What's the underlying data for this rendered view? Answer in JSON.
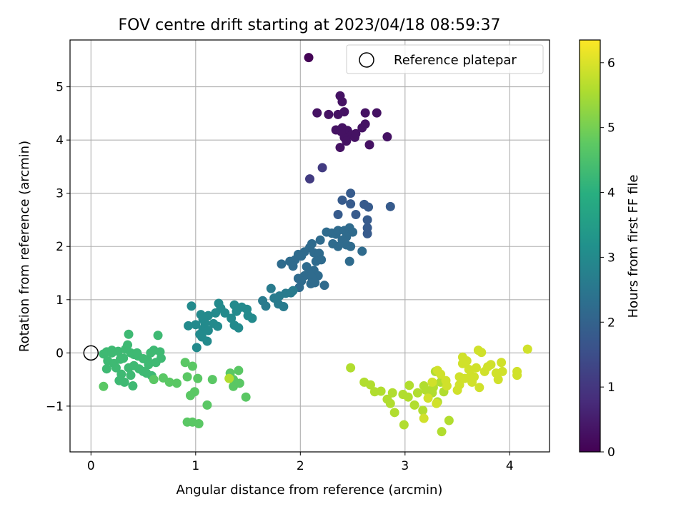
{
  "chart_data": {
    "type": "scatter",
    "title": "FOV centre drift starting at 2023/04/18 08:59:37",
    "xlabel": "Angular distance from reference (arcmin)",
    "ylabel": "Rotation from reference (arcmin)",
    "xlim": [
      -0.2,
      4.38
    ],
    "ylim": [
      -1.86,
      5.88
    ],
    "xticks": [
      0,
      1,
      2,
      3,
      4
    ],
    "xtick_labels": [
      "0",
      "1",
      "2",
      "3",
      "4"
    ],
    "yticks": [
      -1,
      0,
      1,
      2,
      3,
      4,
      5
    ],
    "ytick_labels": [
      "−1",
      "0",
      "1",
      "2",
      "3",
      "4",
      "5"
    ],
    "grid": true,
    "legend": {
      "label": "Reference platepar",
      "placement": "top-right"
    },
    "reference_point": {
      "x": 0,
      "y": 0
    },
    "colorbar": {
      "label": "Hours from first FF file",
      "range": [
        0,
        6.35
      ],
      "ticks": [
        0,
        1,
        2,
        3,
        4,
        5,
        6
      ],
      "tick_labels": [
        "0",
        "1",
        "2",
        "3",
        "4",
        "5",
        "6"
      ],
      "colormap": "viridis"
    },
    "point_groups": [
      {
        "hours": 0.05,
        "points": [
          [
            2.08,
            5.55
          ]
        ]
      },
      {
        "hours": 0.3,
        "points": [
          [
            2.16,
            4.51
          ],
          [
            2.27,
            4.48
          ],
          [
            2.36,
            4.48
          ],
          [
            2.42,
            4.53
          ],
          [
            2.38,
            4.83
          ],
          [
            2.4,
            4.72
          ],
          [
            2.62,
            4.51
          ],
          [
            2.73,
            4.51
          ],
          [
            2.34,
            4.19
          ],
          [
            2.4,
            4.23
          ],
          [
            2.45,
            4.18
          ],
          [
            2.49,
            4.1
          ],
          [
            2.38,
            3.86
          ],
          [
            2.42,
            4.05
          ],
          [
            2.52,
            4.05
          ],
          [
            2.44,
            3.98
          ],
          [
            2.59,
            4.23
          ],
          [
            2.62,
            4.3
          ],
          [
            2.53,
            4.12
          ],
          [
            2.66,
            3.91
          ],
          [
            2.83,
            4.06
          ],
          [
            2.39,
            4.16
          ]
        ]
      },
      {
        "hours": 1.1,
        "points": [
          [
            2.21,
            3.48
          ],
          [
            2.09,
            3.27
          ]
        ]
      },
      {
        "hours": 1.8,
        "points": [
          [
            2.48,
            3.0
          ],
          [
            2.4,
            2.87
          ],
          [
            2.48,
            2.8
          ],
          [
            2.61,
            2.79
          ],
          [
            2.65,
            2.74
          ],
          [
            2.86,
            2.75
          ],
          [
            2.53,
            2.6
          ],
          [
            2.36,
            2.6
          ],
          [
            2.64,
            2.5
          ],
          [
            2.64,
            2.35
          ],
          [
            2.64,
            2.24
          ]
        ]
      },
      {
        "hours": 2.2,
        "points": [
          [
            2.25,
            2.27
          ],
          [
            2.3,
            2.25
          ],
          [
            2.34,
            2.23
          ],
          [
            2.36,
            2.3
          ],
          [
            2.42,
            2.3
          ],
          [
            2.47,
            2.35
          ],
          [
            2.5,
            2.27
          ],
          [
            2.44,
            2.18
          ],
          [
            2.4,
            2.12
          ],
          [
            2.31,
            2.05
          ],
          [
            2.36,
            2.0
          ],
          [
            2.44,
            2.03
          ],
          [
            2.48,
            2.0
          ],
          [
            2.59,
            1.91
          ],
          [
            2.47,
            1.72
          ],
          [
            2.19,
            2.12
          ],
          [
            2.11,
            2.05
          ],
          [
            2.09,
            1.98
          ],
          [
            2.04,
            1.9
          ],
          [
            2.13,
            1.88
          ],
          [
            2.18,
            1.87
          ],
          [
            1.98,
            1.85
          ],
          [
            1.95,
            1.75
          ],
          [
            2.01,
            1.82
          ],
          [
            2.2,
            1.75
          ],
          [
            2.15,
            1.72
          ],
          [
            1.9,
            1.72
          ],
          [
            1.82,
            1.67
          ],
          [
            1.93,
            1.63
          ],
          [
            2.06,
            1.62
          ],
          [
            2.13,
            1.55
          ],
          [
            2.08,
            1.5
          ],
          [
            2.17,
            1.45
          ],
          [
            2.04,
            1.45
          ],
          [
            2.11,
            1.42
          ],
          [
            1.98,
            1.4
          ],
          [
            2.01,
            1.35
          ],
          [
            2.1,
            1.3
          ],
          [
            2.23,
            1.27
          ],
          [
            1.99,
            1.23
          ],
          [
            2.14,
            1.32
          ]
        ]
      },
      {
        "hours": 2.6,
        "points": [
          [
            1.93,
            1.17
          ],
          [
            1.86,
            1.12
          ],
          [
            1.91,
            1.13
          ],
          [
            1.8,
            1.07
          ],
          [
            1.72,
            1.21
          ],
          [
            1.75,
            1.03
          ],
          [
            1.79,
            0.92
          ],
          [
            1.84,
            0.87
          ],
          [
            1.64,
            0.98
          ],
          [
            1.67,
            0.88
          ]
        ]
      },
      {
        "hours": 3.0,
        "points": [
          [
            1.44,
            0.86
          ],
          [
            1.49,
            0.82
          ],
          [
            1.37,
            0.9
          ],
          [
            1.39,
            0.78
          ],
          [
            1.22,
            0.93
          ],
          [
            1.24,
            0.84
          ],
          [
            1.28,
            0.75
          ],
          [
            1.19,
            0.75
          ],
          [
            1.34,
            0.65
          ],
          [
            1.5,
            0.7
          ],
          [
            1.54,
            0.65
          ],
          [
            1.37,
            0.52
          ],
          [
            1.41,
            0.47
          ],
          [
            1.05,
            0.72
          ],
          [
            1.12,
            0.7
          ],
          [
            1.07,
            0.63
          ],
          [
            1.09,
            0.56
          ],
          [
            1.17,
            0.55
          ],
          [
            1.21,
            0.5
          ],
          [
            0.96,
            0.88
          ],
          [
            1.0,
            0.53
          ],
          [
            1.07,
            0.45
          ],
          [
            1.12,
            0.42
          ],
          [
            0.93,
            0.51
          ],
          [
            1.04,
            0.35
          ],
          [
            1.06,
            0.3
          ],
          [
            1.01,
            0.1
          ],
          [
            1.11,
            0.22
          ]
        ]
      },
      {
        "hours": 4.3,
        "points": [
          [
            0.12,
            -0.02
          ],
          [
            0.15,
            0.02
          ],
          [
            0.2,
            0.05
          ],
          [
            0.26,
            0.03
          ],
          [
            0.33,
            0.07
          ],
          [
            0.35,
            0.15
          ],
          [
            0.38,
            0.0
          ],
          [
            0.41,
            -0.03
          ],
          [
            0.45,
            -0.06
          ],
          [
            0.5,
            -0.11
          ],
          [
            0.54,
            -0.13
          ],
          [
            0.57,
            0.0
          ],
          [
            0.6,
            0.05
          ],
          [
            0.66,
            0.02
          ],
          [
            0.64,
            0.33
          ],
          [
            0.36,
            0.35
          ],
          [
            0.16,
            -0.15
          ],
          [
            0.22,
            -0.2
          ],
          [
            0.28,
            -0.12
          ],
          [
            0.31,
            -0.1
          ],
          [
            0.36,
            -0.28
          ],
          [
            0.41,
            -0.24
          ],
          [
            0.46,
            -0.3
          ],
          [
            0.5,
            -0.35
          ],
          [
            0.55,
            -0.22
          ],
          [
            0.62,
            -0.18
          ],
          [
            0.67,
            -0.1
          ],
          [
            0.24,
            -0.28
          ],
          [
            0.29,
            -0.4
          ],
          [
            0.38,
            -0.42
          ],
          [
            0.15,
            -0.3
          ],
          [
            0.32,
            -0.55
          ],
          [
            0.27,
            -0.52
          ],
          [
            0.4,
            -0.62
          ],
          [
            0.2,
            0.0
          ],
          [
            0.44,
            0.0
          ],
          [
            0.58,
            -0.43
          ],
          [
            0.53,
            -0.38
          ]
        ]
      },
      {
        "hours": 4.7,
        "points": [
          [
            0.12,
            -0.63
          ],
          [
            0.6,
            -0.5
          ],
          [
            0.69,
            -0.47
          ],
          [
            0.75,
            -0.55
          ],
          [
            0.82,
            -0.57
          ],
          [
            0.9,
            -0.18
          ],
          [
            0.97,
            -0.25
          ],
          [
            0.92,
            -0.45
          ],
          [
            1.02,
            -0.48
          ],
          [
            1.16,
            -0.5
          ],
          [
            1.33,
            -0.38
          ],
          [
            1.41,
            -0.33
          ],
          [
            1.36,
            -0.5
          ],
          [
            1.36,
            -0.63
          ],
          [
            1.42,
            -0.57
          ],
          [
            1.48,
            -0.83
          ],
          [
            0.95,
            -0.8
          ],
          [
            0.99,
            -0.73
          ],
          [
            1.11,
            -0.98
          ],
          [
            0.92,
            -1.3
          ],
          [
            0.97,
            -1.3
          ],
          [
            1.03,
            -1.33
          ]
        ]
      },
      {
        "hours": 5.6,
        "points": [
          [
            2.48,
            -0.28
          ],
          [
            2.61,
            -0.55
          ],
          [
            2.67,
            -0.6
          ],
          [
            2.71,
            -0.73
          ],
          [
            2.77,
            -0.72
          ],
          [
            2.83,
            -0.87
          ],
          [
            2.88,
            -0.75
          ],
          [
            2.9,
            -1.12
          ],
          [
            2.86,
            -0.95
          ],
          [
            2.98,
            -0.78
          ],
          [
            3.04,
            -0.61
          ],
          [
            3.03,
            -0.83
          ],
          [
            3.09,
            -0.98
          ],
          [
            2.99,
            -1.35
          ],
          [
            3.12,
            -0.75
          ],
          [
            3.18,
            -0.62
          ],
          [
            3.17,
            -1.08
          ],
          [
            3.2,
            -0.7
          ],
          [
            3.27,
            -0.65
          ],
          [
            3.26,
            -0.75
          ],
          [
            3.31,
            -0.92
          ],
          [
            3.29,
            -0.35
          ],
          [
            3.34,
            -0.55
          ],
          [
            3.37,
            -0.73
          ],
          [
            3.42,
            -1.27
          ],
          [
            3.35,
            -1.48
          ],
          [
            1.32,
            -0.48
          ]
        ]
      },
      {
        "hours": 5.9,
        "points": [
          [
            3.18,
            -1.23
          ],
          [
            3.22,
            -0.85
          ],
          [
            3.26,
            -0.55
          ],
          [
            3.31,
            -0.33
          ],
          [
            3.34,
            -0.4
          ],
          [
            3.39,
            -0.52
          ],
          [
            3.5,
            -0.7
          ],
          [
            3.52,
            -0.45
          ],
          [
            3.57,
            -0.48
          ],
          [
            3.55,
            -0.2
          ],
          [
            3.59,
            -0.15
          ],
          [
            3.61,
            -0.31
          ],
          [
            3.63,
            -0.42
          ],
          [
            3.64,
            -0.55
          ],
          [
            3.68,
            -0.28
          ],
          [
            3.7,
            0.05
          ],
          [
            3.73,
            0.01
          ],
          [
            3.76,
            -0.35
          ],
          [
            3.79,
            -0.26
          ],
          [
            3.82,
            -0.22
          ],
          [
            3.87,
            -0.38
          ],
          [
            3.89,
            -0.5
          ],
          [
            3.92,
            -0.18
          ],
          [
            3.93,
            -0.35
          ],
          [
            3.71,
            -0.65
          ],
          [
            3.55,
            -0.08
          ],
          [
            4.07,
            -0.35
          ],
          [
            4.07,
            -0.42
          ],
          [
            4.17,
            0.07
          ],
          [
            3.52,
            -0.6
          ],
          [
            3.66,
            -0.45
          ],
          [
            3.4,
            -0.62
          ],
          [
            3.3,
            -0.95
          ]
        ]
      }
    ]
  }
}
